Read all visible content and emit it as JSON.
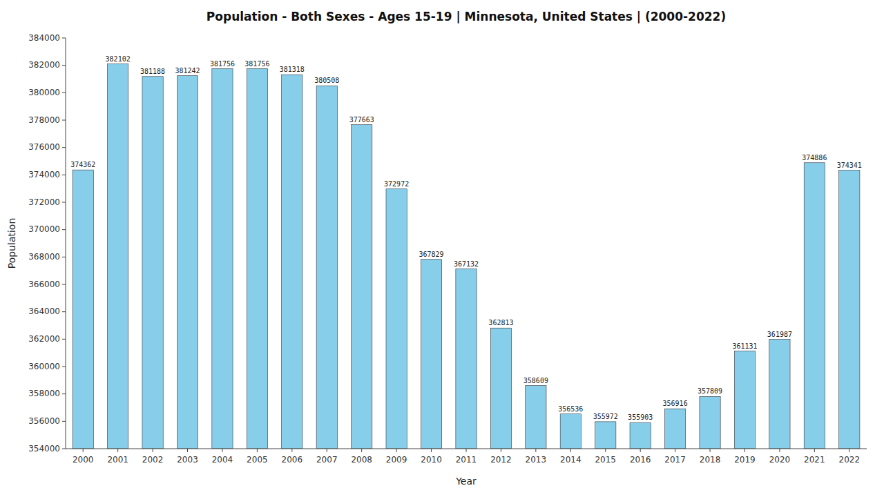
{
  "chart_data": {
    "type": "bar",
    "title": "Population - Both Sexes - Ages 15-19 | Minnesota, United States |  (2000-2022)",
    "xlabel": "Year",
    "ylabel": "Population",
    "categories": [
      "2000",
      "2001",
      "2002",
      "2003",
      "2004",
      "2005",
      "2006",
      "2007",
      "2008",
      "2009",
      "2010",
      "2011",
      "2012",
      "2013",
      "2014",
      "2015",
      "2016",
      "2017",
      "2018",
      "2019",
      "2020",
      "2021",
      "2022"
    ],
    "values": [
      374362,
      382102,
      381188,
      381242,
      381756,
      381756,
      381318,
      380508,
      377663,
      372972,
      367829,
      367132,
      362813,
      358609,
      356536,
      355972,
      355903,
      356916,
      357809,
      361131,
      361987,
      374886,
      374341
    ],
    "color": "#87CEEB",
    "ylim": [
      354000,
      384000
    ],
    "yticks": [
      354000,
      356000,
      358000,
      360000,
      362000,
      364000,
      366000,
      368000,
      370000,
      372000,
      374000,
      376000,
      378000,
      380000,
      382000,
      384000
    ],
    "grid": false,
    "data_labels": true
  }
}
